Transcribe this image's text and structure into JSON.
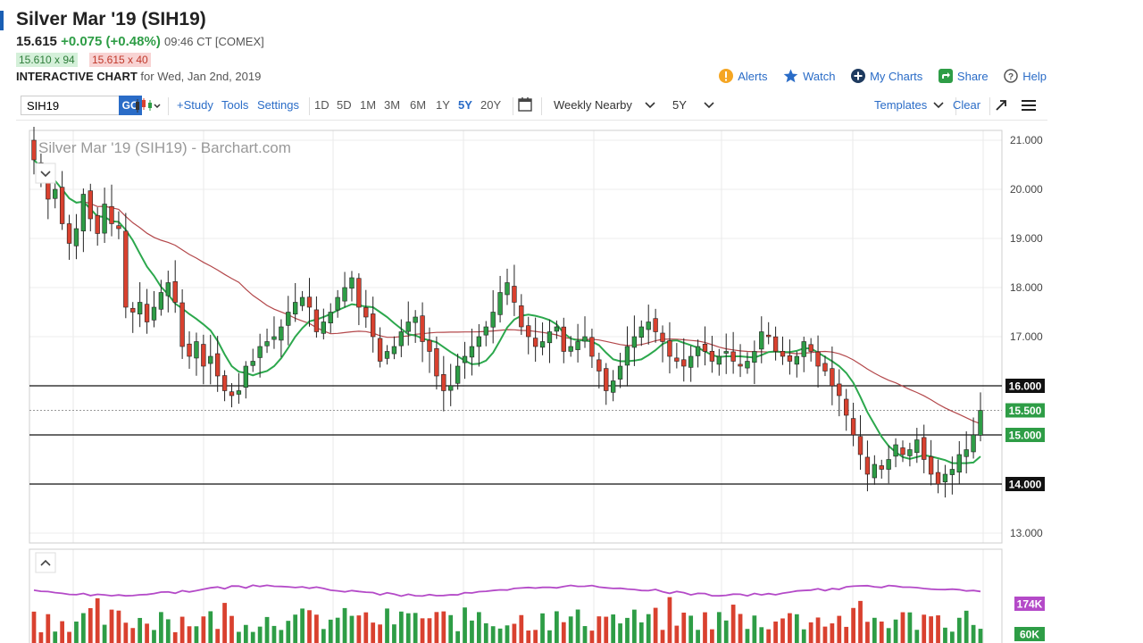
{
  "header": {
    "title": "Silver Mar '19 (SIH19)",
    "last": "15.615",
    "change": "+0.075 (+0.48%)",
    "time": "09:46 CT [COMEX]",
    "bid": "15.610 x 94",
    "ask": "15.615 x 40",
    "chart_label": "INTERACTIVE CHART",
    "chart_date": "for Wed, Jan 2nd, 2019"
  },
  "top_links": {
    "alerts": "Alerts",
    "watch": "Watch",
    "my_charts": "My Charts",
    "share": "Share",
    "help": "Help"
  },
  "toolbar": {
    "symbol_value": "SIH19",
    "go": "GO",
    "study": "+Study",
    "tools": "Tools",
    "settings": "Settings",
    "periods": [
      "1D",
      "5D",
      "1M",
      "3M",
      "6M",
      "1Y",
      "5Y",
      "20Y"
    ],
    "active_period": "5Y",
    "aggregation": "Weekly Nearby",
    "range": "5Y",
    "templates": "Templates",
    "clear": "Clear"
  },
  "colors": {
    "up": "#2e9d46",
    "down": "#d9412f",
    "ma_fast": "#2ca84d",
    "ma_slow": "#b3474a",
    "volume_ma": "#b44ac8",
    "accent": "#2a6cc7"
  },
  "chart_data": {
    "type": "candlestick",
    "title": "Silver Mar '19 (SIH19) - Barchart.com",
    "ylim": [
      12.8,
      21.2
    ],
    "y_ticks": [
      "21.000",
      "20.000",
      "19.000",
      "18.000",
      "17.000",
      "16.000",
      "15.500",
      "15.000",
      "14.000",
      "13.000"
    ],
    "horizontal_lines": [
      16.0,
      15.0,
      14.0
    ],
    "last_price_line": 15.5,
    "highlighted_levels": [
      {
        "value": 16.0,
        "label": "16.000"
      },
      {
        "value": 15.5,
        "label": "15.500"
      },
      {
        "value": 15.0,
        "label": "15.000"
      },
      {
        "value": 14.0,
        "label": "14.000"
      }
    ],
    "close_series": [
      20.6,
      20.3,
      19.8,
      20.0,
      19.3,
      18.9,
      19.2,
      19.9,
      19.4,
      19.1,
      19.7,
      19.3,
      19.2,
      17.6,
      17.5,
      17.7,
      17.3,
      17.6,
      17.9,
      18.1,
      17.7,
      16.8,
      16.6,
      16.9,
      16.4,
      16.6,
      16.2,
      15.9,
      15.8,
      15.9,
      16.4,
      16.5,
      16.8,
      16.9,
      17.0,
      17.2,
      17.5,
      17.7,
      17.8,
      17.6,
      17.1,
      17.3,
      17.5,
      17.8,
      18.0,
      18.2,
      17.6,
      17.4,
      17.0,
      16.5,
      16.7,
      16.8,
      17.1,
      17.3,
      17.4,
      16.9,
      16.7,
      16.2,
      15.9,
      16.0,
      16.4,
      16.6,
      16.8,
      17.0,
      17.2,
      17.5,
      17.9,
      18.1,
      17.7,
      17.2,
      17.0,
      16.8,
      16.9,
      17.1,
      17.2,
      16.7,
      16.8,
      16.9,
      17.0,
      16.6,
      16.3,
      15.9,
      16.1,
      16.4,
      16.8,
      17.0,
      17.2,
      17.3,
      17.1,
      16.9,
      16.6,
      16.5,
      16.4,
      16.6,
      16.8,
      16.7,
      16.5,
      16.6,
      16.7,
      16.5,
      16.4,
      16.5,
      16.7,
      17.1,
      17.0,
      16.7,
      16.6,
      16.5,
      16.6,
      16.9,
      16.7,
      16.4,
      16.3,
      16.0,
      15.8,
      15.4,
      15.0,
      14.6,
      14.2,
      14.4,
      14.3,
      14.5,
      14.8,
      14.6,
      14.7,
      14.9,
      14.5,
      14.2,
      14.0,
      14.2,
      14.3,
      14.6,
      14.7,
      15.0,
      15.5
    ],
    "ma_fast_label": "green moving average",
    "ma_slow_label": "red moving average",
    "volume_labels": [
      "174K",
      "60K"
    ]
  }
}
